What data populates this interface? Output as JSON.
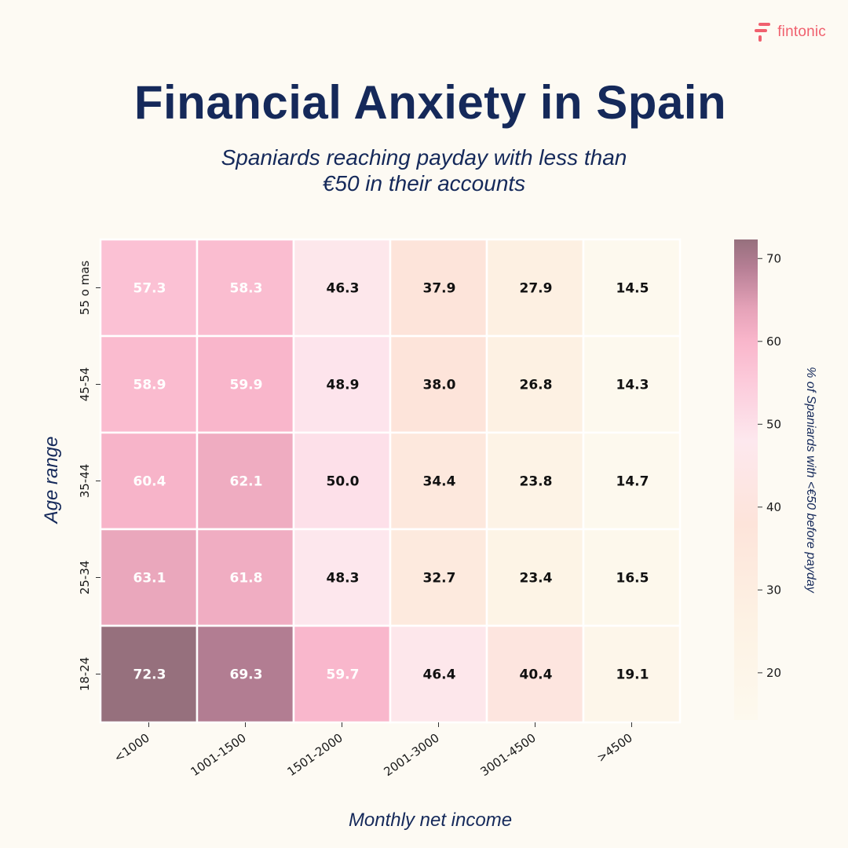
{
  "brand": {
    "name": "fintonic",
    "icon": "fintonic-logo-icon",
    "color": "#f0606e"
  },
  "title": "Financial Anxiety in Spain",
  "subtitle_lines": [
    "Spaniards reaching payday with less than",
    "€50 in their accounts"
  ],
  "chart_data": {
    "type": "heatmap",
    "xlabel": "Monthly net income",
    "ylabel": "Age range",
    "colorbar_label": "% of Spaniards with <€50 before payday",
    "x_categories": [
      "<1000",
      "1001-1500",
      "1501-2000",
      "2001-3000",
      "3001-4500",
      ">4500"
    ],
    "y_categories": [
      "55 o mas",
      "45-54",
      "35-44",
      "25-34",
      "18-24"
    ],
    "values": [
      [
        57.3,
        58.3,
        46.3,
        37.9,
        27.9,
        14.5
      ],
      [
        58.9,
        59.9,
        48.9,
        38.0,
        26.8,
        14.3
      ],
      [
        60.4,
        62.1,
        50.0,
        34.4,
        23.8,
        14.7
      ],
      [
        63.1,
        61.8,
        48.3,
        32.7,
        23.4,
        16.5
      ],
      [
        72.3,
        69.3,
        59.7,
        46.4,
        40.4,
        19.1
      ]
    ],
    "value_format": "one decimal",
    "colorbar_range": [
      14.3,
      72.3
    ],
    "colorbar_ticks": [
      20,
      30,
      40,
      50,
      60,
      70
    ],
    "colorscale": [
      {
        "value": 14.3,
        "color": "#fdf9ee"
      },
      {
        "value": 26,
        "color": "#fdf2e4"
      },
      {
        "value": 38,
        "color": "#fde4da"
      },
      {
        "value": 48,
        "color": "#fde8ee"
      },
      {
        "value": 55,
        "color": "#fccbdb"
      },
      {
        "value": 60,
        "color": "#f9b6cb"
      },
      {
        "value": 64,
        "color": "#e5a2b8"
      },
      {
        "value": 69,
        "color": "#b57e94"
      },
      {
        "value": 72.3,
        "color": "#96707d"
      }
    ],
    "label_color_light": "#ffffff",
    "label_color_dark": "#111111",
    "light_label_threshold": 55,
    "text_color": "#15295a"
  }
}
